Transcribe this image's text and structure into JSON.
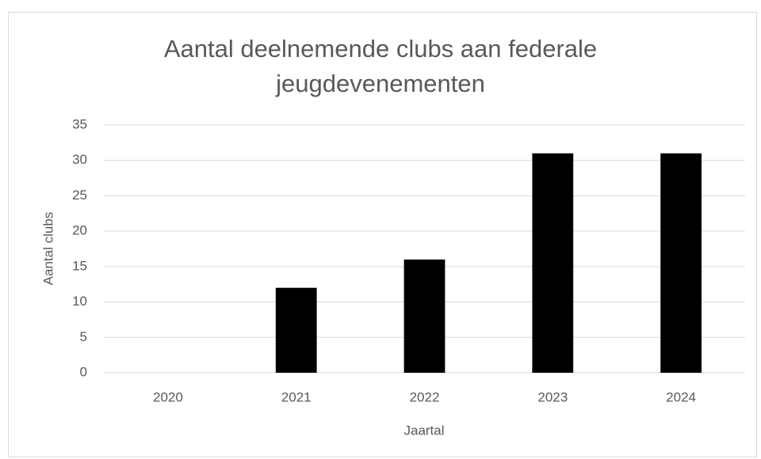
{
  "chart_data": {
    "type": "bar",
    "title": "Aantal deelnemende clubs aan federale jeugdevenementen",
    "x_label": "Jaartal",
    "y_label": "Aantal clubs",
    "categories": [
      "2020",
      "2021",
      "2022",
      "2023",
      "2024"
    ],
    "values": [
      0,
      12,
      16,
      31,
      31
    ],
    "color": "#000000",
    "ylim": [
      0,
      35
    ],
    "yticks": [
      0,
      5,
      10,
      15,
      20,
      25,
      30,
      35
    ],
    "grid": true
  }
}
